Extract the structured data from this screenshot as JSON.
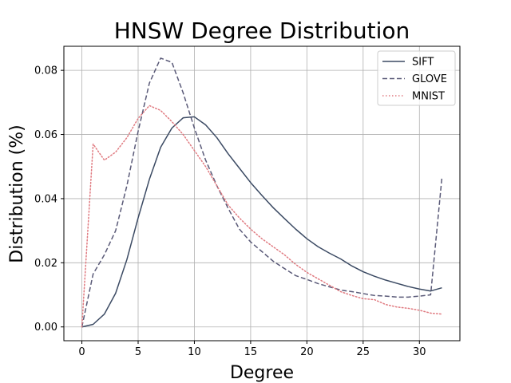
{
  "chart_data": {
    "type": "line",
    "title": "HNSW Degree Distribution",
    "xlabel": "Degree",
    "ylabel": "Distribution (%)",
    "xlim": [
      -1.6,
      33.6
    ],
    "ylim": [
      -0.0043,
      0.0875
    ],
    "xticks": [
      0,
      5,
      10,
      15,
      20,
      25,
      30
    ],
    "yticks": [
      0.0,
      0.02,
      0.04,
      0.06,
      0.08
    ],
    "ytick_labels": [
      "0.00",
      "0.02",
      "0.04",
      "0.06",
      "0.08"
    ],
    "grid": true,
    "legend_position": "top-right",
    "series": [
      {
        "name": "SIFT",
        "color": "#3b4a63",
        "style": "solid",
        "x": [
          0,
          1,
          2,
          3,
          4,
          5,
          6,
          7,
          8,
          9,
          10,
          11,
          12,
          13,
          14,
          15,
          16,
          17,
          18,
          19,
          20,
          21,
          22,
          23,
          24,
          25,
          26,
          27,
          28,
          29,
          30,
          31,
          32
        ],
        "y": [
          0.0,
          0.0008,
          0.004,
          0.0105,
          0.021,
          0.034,
          0.046,
          0.056,
          0.062,
          0.0652,
          0.0655,
          0.063,
          0.059,
          0.054,
          0.0495,
          0.045,
          0.041,
          0.0372,
          0.0338,
          0.0305,
          0.0275,
          0.025,
          0.023,
          0.0212,
          0.019,
          0.0172,
          0.0158,
          0.0146,
          0.0136,
          0.0126,
          0.0118,
          0.0112,
          0.0122
        ]
      },
      {
        "name": "GLOVE",
        "color": "#5a5a78",
        "style": "dashed",
        "x": [
          0,
          1,
          2,
          3,
          4,
          5,
          6,
          7,
          8,
          9,
          10,
          11,
          12,
          13,
          14,
          15,
          16,
          17,
          18,
          19,
          20,
          21,
          22,
          23,
          24,
          25,
          26,
          27,
          28,
          29,
          30,
          31,
          32
        ],
        "y": [
          0.0,
          0.0165,
          0.0225,
          0.03,
          0.044,
          0.061,
          0.076,
          0.0838,
          0.0825,
          0.073,
          0.062,
          0.052,
          0.044,
          0.037,
          0.0305,
          0.0265,
          0.0235,
          0.0205,
          0.0182,
          0.016,
          0.0148,
          0.0135,
          0.0125,
          0.0115,
          0.011,
          0.0104,
          0.0098,
          0.0096,
          0.0093,
          0.0093,
          0.0096,
          0.01,
          0.0465
        ]
      },
      {
        "name": "MNIST",
        "color": "#e07a80",
        "style": "dotted",
        "x": [
          0,
          1,
          2,
          3,
          4,
          5,
          6,
          7,
          8,
          9,
          10,
          11,
          12,
          13,
          14,
          15,
          16,
          17,
          18,
          19,
          20,
          21,
          22,
          23,
          24,
          25,
          26,
          27,
          28,
          29,
          30,
          31,
          32
        ],
        "y": [
          0.0,
          0.057,
          0.052,
          0.0545,
          0.059,
          0.065,
          0.069,
          0.0675,
          0.064,
          0.06,
          0.055,
          0.05,
          0.044,
          0.038,
          0.034,
          0.0305,
          0.0275,
          0.025,
          0.0225,
          0.0195,
          0.017,
          0.015,
          0.013,
          0.011,
          0.0098,
          0.0088,
          0.0085,
          0.007,
          0.0062,
          0.0058,
          0.0052,
          0.0043,
          0.004
        ]
      }
    ]
  }
}
